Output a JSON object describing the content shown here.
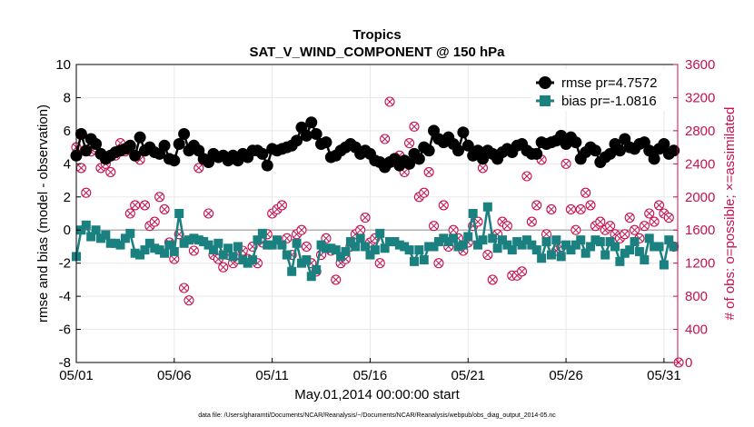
{
  "chart_data": {
    "type": "line",
    "title": "Tropics",
    "subtitle": "SAT_V_WIND_COMPONENT @ 150 hPa",
    "xlabel": "May.01,2014 00:00:00 start",
    "ylabel": "rmse and bias (model - observation)",
    "ylabel_right": "# of obs: o=possible; ×=assimilated",
    "footnote": "data file: /Users/gharamti/Documents/NCAR/Reanalysis/~/Documents/NCAR/Reanalysis/webpub/obs_diag_output_2014-05.nc",
    "xlim": [
      1,
      31.7
    ],
    "ylim": [
      -8,
      10
    ],
    "ylim_right": [
      0,
      3600
    ],
    "x_ticks": [
      1,
      6,
      11,
      16,
      21,
      26,
      31
    ],
    "x_tick_labels": [
      "05/01",
      "05/06",
      "05/11",
      "05/16",
      "05/21",
      "05/26",
      "05/31"
    ],
    "y_ticks": [
      -8,
      -6,
      -4,
      -2,
      0,
      2,
      4,
      6,
      8,
      10
    ],
    "y_tick_labels": [
      "-8",
      "-6",
      "-4",
      "-2",
      "0",
      "2",
      "4",
      "6",
      "8",
      "10"
    ],
    "y_ticks_right": [
      0,
      400,
      800,
      1200,
      1600,
      2000,
      2400,
      2800,
      3200,
      3600
    ],
    "y_tick_labels_right": [
      "0",
      "400",
      "800",
      "1200",
      "1600",
      "2000",
      "2400",
      "2800",
      "3200",
      "3600"
    ],
    "grid": true,
    "legend_position": "top-right",
    "colors": {
      "rmse": "#000000",
      "bias": "#1a8080",
      "obs": "#c8104f"
    },
    "series": [
      {
        "name": "rmse pr=4.7572",
        "marker": "circle",
        "x": [
          1.0,
          1.25,
          1.5,
          1.75,
          2.0,
          2.25,
          2.5,
          2.75,
          3.0,
          3.25,
          3.5,
          3.75,
          4.0,
          4.25,
          4.5,
          4.75,
          5.0,
          5.25,
          5.5,
          5.75,
          6.0,
          6.25,
          6.5,
          6.75,
          7.0,
          7.25,
          7.5,
          7.75,
          8.0,
          8.25,
          8.5,
          8.75,
          9.0,
          9.25,
          9.5,
          9.75,
          10.0,
          10.25,
          10.5,
          10.75,
          11.0,
          11.25,
          11.5,
          11.75,
          12.0,
          12.25,
          12.5,
          12.75,
          13.0,
          13.25,
          13.5,
          13.75,
          14.0,
          14.25,
          14.5,
          14.75,
          15.0,
          15.25,
          15.5,
          15.75,
          16.0,
          16.25,
          16.5,
          16.75,
          17.0,
          17.25,
          17.5,
          17.75,
          18.0,
          18.25,
          18.5,
          18.75,
          19.0,
          19.25,
          19.5,
          19.75,
          20.0,
          20.25,
          20.5,
          20.75,
          21.0,
          21.25,
          21.5,
          21.75,
          22.0,
          22.25,
          22.5,
          22.75,
          23.0,
          23.25,
          23.5,
          23.75,
          24.0,
          24.25,
          24.5,
          24.75,
          25.0,
          25.25,
          25.5,
          25.75,
          26.0,
          26.25,
          26.5,
          26.75,
          27.0,
          27.25,
          27.5,
          27.75,
          28.0,
          28.25,
          28.5,
          28.75,
          29.0,
          29.25,
          29.5,
          29.75,
          30.0,
          30.25,
          30.5,
          30.75,
          31.0,
          31.25,
          31.5
        ],
        "values": [
          4.5,
          5.8,
          4.8,
          5.5,
          5.2,
          4.6,
          4.3,
          4.5,
          4.7,
          4.8,
          4.9,
          5.1,
          4.5,
          5.6,
          4.8,
          5.0,
          4.7,
          4.6,
          5.1,
          4.3,
          4.2,
          5.2,
          5.8,
          4.8,
          5.1,
          4.8,
          4.3,
          4.1,
          4.6,
          4.4,
          4.5,
          4.2,
          4.5,
          4.2,
          4.6,
          4.4,
          4.8,
          4.8,
          4.6,
          3.9,
          4.9,
          4.8,
          4.9,
          5.0,
          5.1,
          5.4,
          6.2,
          5.7,
          6.5,
          5.8,
          5.2,
          5.3,
          4.4,
          4.5,
          4.8,
          5.0,
          5.2,
          5.0,
          4.6,
          4.8,
          4.6,
          4.2,
          4.1,
          3.8,
          4.1,
          4.3,
          3.9,
          4.2,
          4.0,
          4.6,
          4.3,
          5.0,
          4.8,
          6.0,
          5.5,
          5.3,
          5.6,
          5.2,
          4.8,
          5.9,
          5.1,
          4.5,
          4.8,
          4.3,
          4.8,
          4.6,
          4.3,
          4.7,
          4.9,
          4.7,
          5.1,
          5.2,
          4.8,
          4.6,
          4.6,
          5.3,
          5.2,
          5.3,
          5.4,
          5.7,
          5.2,
          5.6,
          5.3,
          4.3,
          4.7,
          5.0,
          4.8,
          4.1,
          4.4,
          4.6,
          5.2,
          4.8,
          5.5,
          5.0,
          4.9,
          5.2,
          5.3,
          4.8,
          4.3,
          4.9,
          5.2,
          4.6,
          4.8
        ]
      },
      {
        "name": "bias pr=-1.0816",
        "marker": "square",
        "x": [
          1.0,
          1.25,
          1.5,
          1.75,
          2.0,
          2.25,
          2.5,
          2.75,
          3.0,
          3.25,
          3.5,
          3.75,
          4.0,
          4.25,
          4.5,
          4.75,
          5.0,
          5.25,
          5.5,
          5.75,
          6.0,
          6.25,
          6.5,
          6.75,
          7.0,
          7.25,
          7.5,
          7.75,
          8.0,
          8.25,
          8.5,
          8.75,
          9.0,
          9.25,
          9.5,
          9.75,
          10.0,
          10.25,
          10.5,
          10.75,
          11.0,
          11.25,
          11.5,
          11.75,
          12.0,
          12.25,
          12.5,
          12.75,
          13.0,
          13.25,
          13.5,
          13.75,
          14.0,
          14.25,
          14.5,
          14.75,
          15.0,
          15.25,
          15.5,
          15.75,
          16.0,
          16.25,
          16.5,
          16.75,
          17.0,
          17.25,
          17.5,
          17.75,
          18.0,
          18.25,
          18.5,
          18.75,
          19.0,
          19.25,
          19.5,
          19.75,
          20.0,
          20.25,
          20.5,
          20.75,
          21.0,
          21.25,
          21.5,
          21.75,
          22.0,
          22.25,
          22.5,
          22.75,
          23.0,
          23.25,
          23.5,
          23.75,
          24.0,
          24.25,
          24.5,
          24.75,
          25.0,
          25.25,
          25.5,
          25.75,
          26.0,
          26.25,
          26.5,
          26.75,
          27.0,
          27.25,
          27.5,
          27.75,
          28.0,
          28.25,
          28.5,
          28.75,
          29.0,
          29.25,
          29.5,
          29.75,
          30.0,
          30.25,
          30.5,
          30.75,
          31.0,
          31.25,
          31.5
        ],
        "values": [
          -1.6,
          0.0,
          0.3,
          -0.4,
          0.0,
          -0.5,
          -0.3,
          -0.8,
          -0.8,
          -0.9,
          -0.5,
          -0.2,
          -1.4,
          -1.5,
          -1.2,
          -0.8,
          -1.1,
          -1.2,
          -1.4,
          -0.9,
          -1.3,
          1.0,
          -0.8,
          -0.6,
          -0.5,
          -0.6,
          -0.7,
          -0.9,
          -1.2,
          -0.8,
          -1.5,
          -1.1,
          -1.6,
          -1.0,
          -1.8,
          -2.0,
          -1.8,
          -0.6,
          -0.2,
          -0.9,
          -0.9,
          -0.6,
          -0.9,
          -1.5,
          -2.5,
          -0.8,
          -2.0,
          -1.8,
          -2.8,
          -2.4,
          -0.9,
          -1.1,
          -1.1,
          -1.2,
          -1.6,
          -1.3,
          -0.7,
          -1.0,
          -0.5,
          -1.0,
          -1.5,
          -1.2,
          -0.2,
          -1.1,
          -0.7,
          -0.7,
          -0.9,
          -1.0,
          -1.2,
          -1.9,
          -1.2,
          -1.8,
          -1.0,
          -1.0,
          -0.7,
          -0.5,
          -0.7,
          -0.5,
          -1.0,
          -0.9,
          -0.4,
          1.0,
          -0.9,
          -0.6,
          1.4,
          -0.5,
          -1.1,
          -0.6,
          -0.9,
          -1.2,
          -0.7,
          -0.9,
          -0.6,
          -0.9,
          -1.2,
          -1.7,
          -0.7,
          -1.5,
          -0.6,
          -1.6,
          -0.9,
          -1.2,
          -0.9,
          -0.6,
          -1.4,
          -1.0,
          -0.6,
          -0.7,
          -1.5,
          -0.7,
          -1.0,
          -1.9,
          -1.4,
          -1.2,
          -0.7,
          -1.3,
          -1.8,
          -0.5,
          -1.0,
          -1.0,
          -2.1,
          -0.6,
          -1.0
        ]
      },
      {
        "name": "# of obs",
        "marker": "circle-x",
        "axis": "right",
        "x": [
          1.0,
          1.25,
          1.5,
          1.75,
          2.0,
          2.25,
          2.5,
          2.75,
          3.0,
          3.25,
          3.5,
          3.75,
          4.0,
          4.25,
          4.5,
          4.75,
          5.0,
          5.25,
          5.5,
          5.75,
          6.0,
          6.25,
          6.5,
          6.75,
          7.0,
          7.25,
          7.5,
          7.75,
          8.0,
          8.25,
          8.5,
          8.75,
          9.0,
          9.25,
          9.5,
          9.75,
          10.0,
          10.25,
          10.5,
          10.75,
          11.0,
          11.25,
          11.5,
          11.75,
          12.0,
          12.25,
          12.5,
          12.75,
          13.0,
          13.25,
          13.5,
          13.75,
          14.0,
          14.25,
          14.5,
          14.75,
          15.0,
          15.25,
          15.5,
          15.75,
          16.0,
          16.25,
          16.5,
          16.75,
          17.0,
          17.25,
          17.5,
          17.75,
          18.0,
          18.25,
          18.5,
          18.75,
          19.0,
          19.25,
          19.5,
          19.75,
          20.0,
          20.25,
          20.5,
          20.75,
          21.0,
          21.25,
          21.5,
          21.75,
          22.0,
          22.25,
          22.5,
          22.75,
          23.0,
          23.25,
          23.5,
          23.75,
          24.0,
          24.25,
          24.5,
          24.75,
          25.0,
          25.25,
          25.5,
          25.75,
          26.0,
          26.25,
          26.5,
          26.75,
          27.0,
          27.25,
          27.5,
          27.75,
          28.0,
          28.25,
          28.5,
          28.75,
          29.0,
          29.25,
          29.5,
          29.75,
          30.0,
          30.25,
          30.5,
          30.75,
          31.0,
          31.25,
          31.5,
          31.75
        ],
        "values": [
          2600,
          2350,
          2050,
          2550,
          2600,
          2350,
          2400,
          2300,
          2500,
          2650,
          2550,
          1800,
          1900,
          2450,
          1900,
          1650,
          1700,
          2000,
          1850,
          1450,
          1250,
          1550,
          900,
          750,
          1350,
          2350,
          2450,
          1800,
          1300,
          1250,
          1150,
          1300,
          1200,
          1250,
          1350,
          1250,
          1400,
          1200,
          1450,
          1550,
          1800,
          1850,
          1900,
          1500,
          1300,
          1550,
          1600,
          1400,
          1200,
          1100,
          1300,
          1500,
          1350,
          1000,
          1200,
          1250,
          1400,
          1550,
          1600,
          1750,
          1450,
          1500,
          1200,
          2700,
          3150,
          2450,
          2500,
          2300,
          2650,
          2850,
          2000,
          2050,
          2300,
          1650,
          1200,
          1900,
          1400,
          1600,
          1500,
          1350,
          1450,
          1650,
          1700,
          2350,
          1300,
          1000,
          1550,
          1700,
          1650,
          1050,
          1050,
          1100,
          2250,
          1700,
          1900,
          2450,
          1550,
          1850,
          1350,
          1400,
          2400,
          1850,
          1600,
          1850,
          2050,
          1900,
          1650,
          1700,
          1600,
          1650,
          1550,
          1500,
          1550,
          1750,
          1600,
          1500,
          1650,
          1800,
          1700,
          1900,
          1800,
          1750,
          1400,
          0
        ]
      }
    ]
  }
}
